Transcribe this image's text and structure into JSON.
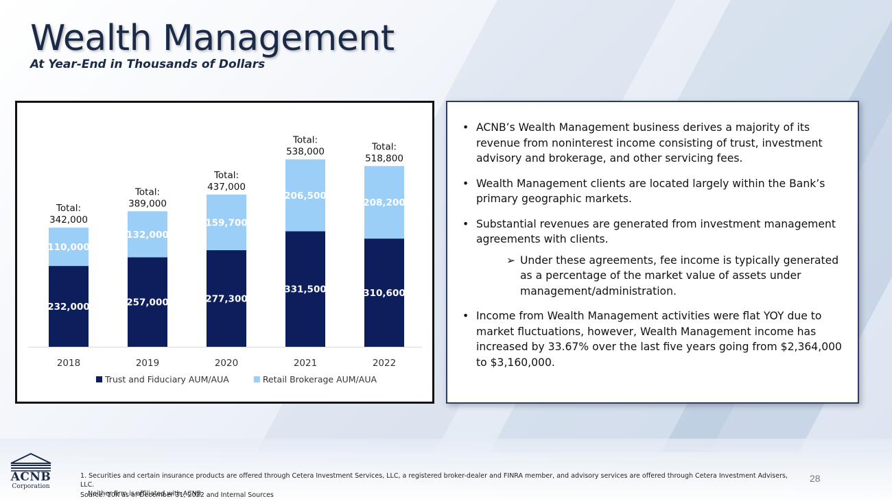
{
  "page": {
    "title": "Wealth Management",
    "subtitle": "At Year-End in Thousands of Dollars",
    "page_number": "28"
  },
  "chart_data": {
    "type": "bar",
    "stacked": true,
    "categories": [
      "2018",
      "2019",
      "2020",
      "2021",
      "2022"
    ],
    "series": [
      {
        "name": "Trust and Fiduciary AUM/AUA",
        "values": [
          232000,
          257000,
          277300,
          331500,
          310600
        ],
        "color": "#0c1e5b",
        "labels": [
          "232,000",
          "257,000",
          "277,300",
          "331,500",
          "310,600"
        ]
      },
      {
        "name": "Retail Brokerage AUM/AUA",
        "values": [
          110000,
          132000,
          159700,
          206500,
          208200
        ],
        "color": "#9ccff8",
        "labels": [
          "110,000",
          "132,000",
          "159,700",
          "206,500",
          "208,200"
        ]
      }
    ],
    "totals": [
      {
        "label": "Total:",
        "value": "342,000"
      },
      {
        "label": "Total:",
        "value": "389,000"
      },
      {
        "label": "Total:",
        "value": "437,000"
      },
      {
        "label": "Total:",
        "value": "538,000"
      },
      {
        "label": "Total:",
        "value": "518,800"
      }
    ],
    "ylim": [
      0,
      600000
    ],
    "grid": false,
    "legend_position": "bottom"
  },
  "bullets": [
    {
      "text": "ACNB’s Wealth Management business derives a majority of its revenue from noninterest  income consisting of trust, investment advisory and brokerage, and other servicing fees."
    },
    {
      "text": "Wealth Management clients are located largely within the Bank’s primary geographic markets."
    },
    {
      "text": "Substantial revenues are generated from investment management agreements with clients."
    },
    {
      "text": "Under these agreements, fee income is typically generated as a percentage of the market value of assets under management/administration."
    },
    {
      "text": "Income from Wealth Management activities were flat YOY due to market fluctuations, however, Wealth Management income has increased by 33.67% over the last five years going from $2,364,000 to $3,160,000."
    }
  ],
  "bullet_marker": "•",
  "sub_bullet_marker": "➢",
  "logo": {
    "name": "ACNB",
    "sub": "Corporation"
  },
  "footnotes": {
    "line1": "1.  Securities and certain insurance products are offered through Cetera Investment Services, LLC, a registered broker-dealer and FINRA member, and advisory services are offered through Cetera Investment Advisers, LLC.",
    "line2": "Neither firm is affiliated with ACNB.",
    "source": "Source:  10K as of December 31, 2022 and Internal Sources"
  }
}
